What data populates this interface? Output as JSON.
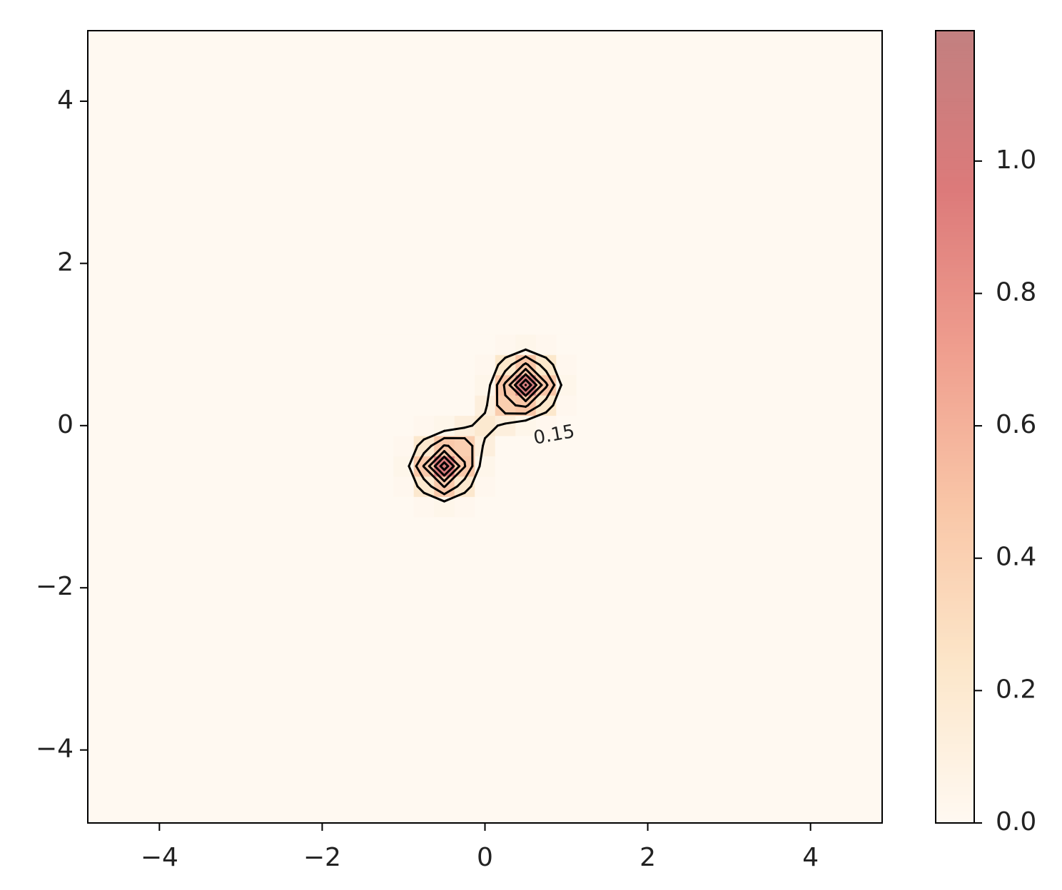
{
  "chart_data": {
    "type": "contour",
    "x": [
      -1.25,
      -1,
      -0.75,
      -0.5,
      -0.25,
      0,
      0.25,
      0.5,
      0.75,
      1,
      1.25
    ],
    "y": [
      -1.25,
      -1,
      -0.75,
      -0.5,
      -0.25,
      0,
      0.25,
      0.5,
      0.75,
      1,
      1.25
    ],
    "z": [
      [
        0,
        0,
        0,
        0,
        0,
        0,
        0,
        0,
        0,
        0,
        0
      ],
      [
        0,
        0,
        0.02,
        0.04,
        0.02,
        0,
        0,
        0,
        0,
        0,
        0
      ],
      [
        0,
        0.02,
        0.21,
        0.46,
        0.21,
        0.02,
        0,
        0,
        0,
        0,
        0
      ],
      [
        0,
        0.04,
        0.46,
        1.0,
        0.46,
        0.04,
        0,
        0,
        0,
        0,
        0
      ],
      [
        0,
        0.02,
        0.21,
        0.46,
        0.41,
        0.12,
        0,
        0,
        0,
        0,
        0
      ],
      [
        0,
        0,
        0.02,
        0.04,
        0.12,
        0.2,
        0.12,
        0.04,
        0.02,
        0,
        0
      ],
      [
        0,
        0,
        0,
        0,
        0,
        0.12,
        0.42,
        0.48,
        0.22,
        0.02,
        0
      ],
      [
        0,
        0,
        0,
        0,
        0,
        0.04,
        0.48,
        1.05,
        0.48,
        0.04,
        0
      ],
      [
        0,
        0,
        0,
        0,
        0,
        0.02,
        0.22,
        0.48,
        0.22,
        0.02,
        0
      ],
      [
        0,
        0,
        0,
        0,
        0,
        0,
        0.02,
        0.04,
        0.02,
        0,
        0
      ],
      [
        0,
        0,
        0,
        0,
        0,
        0,
        0,
        0,
        0,
        0,
        0
      ]
    ],
    "levels": [
      0.15,
      0.3,
      0.45,
      0.6,
      0.75,
      0.9,
      1.05
    ],
    "line_color": "#000000",
    "colormap": [
      "#fff9f1",
      "#fce6c9",
      "#f9c6a7",
      "#ef9d8e",
      "#dc7a7a",
      "#c28080"
    ],
    "xlim": [
      -4.88,
      4.88
    ],
    "ylim": [
      -4.9,
      4.87
    ],
    "clim": [
      0,
      1.197
    ],
    "xticks": [
      {
        "value": -4,
        "label": "−4"
      },
      {
        "value": -2,
        "label": "−2"
      },
      0,
      2,
      4
    ],
    "yticks": [
      {
        "value": -4,
        "label": "−4"
      },
      {
        "value": -2,
        "label": "−2"
      },
      0,
      2,
      4
    ],
    "cticks": [
      {
        "value": 0,
        "label": "0.0"
      },
      0.2,
      0.4,
      0.6,
      0.8,
      {
        "value": 1,
        "label": "1.0"
      }
    ]
  }
}
